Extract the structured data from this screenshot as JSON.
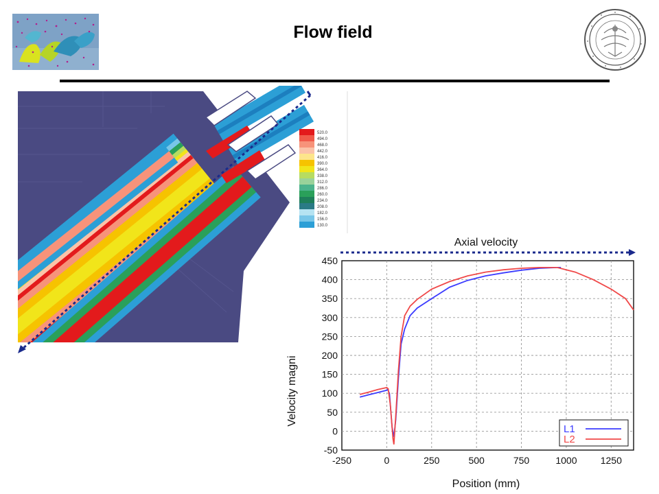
{
  "header": {
    "title": "Flow field"
  },
  "contour_legend": {
    "levels": [
      "520.0",
      "494.0",
      "468.0",
      "442.0",
      "416.0",
      "390.0",
      "364.0",
      "338.0",
      "312.0",
      "286.0",
      "260.0",
      "234.0",
      "208.0",
      "182.0",
      "156.0",
      "130.0"
    ],
    "colors": [
      "#e31a1c",
      "#f05a4a",
      "#f7937a",
      "#fbc3a8",
      "#fde58b",
      "#f6c300",
      "#f1e51a",
      "#b7dc61",
      "#9ad29a",
      "#4cb38c",
      "#2aa05a",
      "#1e7f5a",
      "#2a7b86",
      "#b5e3f2",
      "#78c6e8",
      "#2c9fd6"
    ]
  },
  "colors": {
    "L1": "#3b3bff",
    "L2": "#f04848",
    "guide": "#1a2a8c",
    "domain": "#4a4a82"
  },
  "chart_data": {
    "type": "line",
    "title": "Axial velocity",
    "xlabel": "Position (mm)",
    "ylabel": "Velocity magni",
    "xlim": [
      -250,
      1375
    ],
    "ylim": [
      -50,
      450
    ],
    "xticks": [
      -250,
      0,
      250,
      500,
      750,
      1000,
      1250
    ],
    "yticks": [
      -50,
      0,
      50,
      100,
      150,
      200,
      250,
      300,
      350,
      400,
      450
    ],
    "grid": true,
    "legend_position": "bottom-right",
    "series": [
      {
        "name": "L1",
        "x": [
          -150,
          -100,
          -50,
          0,
          5,
          15,
          25,
          30,
          40,
          50,
          65,
          80,
          100,
          130,
          170,
          250,
          350,
          450,
          550,
          650,
          750,
          850,
          950,
          970
        ],
        "y": [
          90,
          96,
          102,
          108,
          110,
          100,
          40,
          10,
          -15,
          30,
          140,
          230,
          270,
          305,
          325,
          350,
          380,
          398,
          410,
          418,
          425,
          430,
          432,
          432
        ]
      },
      {
        "name": "L2",
        "x": [
          -150,
          -100,
          -50,
          0,
          8,
          20,
          30,
          35,
          40,
          50,
          65,
          80,
          100,
          130,
          170,
          250,
          350,
          450,
          550,
          650,
          750,
          850,
          950,
          1050,
          1150,
          1250,
          1330,
          1375
        ],
        "y": [
          97,
          103,
          110,
          115,
          112,
          70,
          10,
          -20,
          -35,
          40,
          160,
          250,
          305,
          330,
          348,
          375,
          395,
          410,
          420,
          426,
          430,
          432,
          432,
          420,
          400,
          375,
          350,
          320
        ]
      }
    ]
  }
}
